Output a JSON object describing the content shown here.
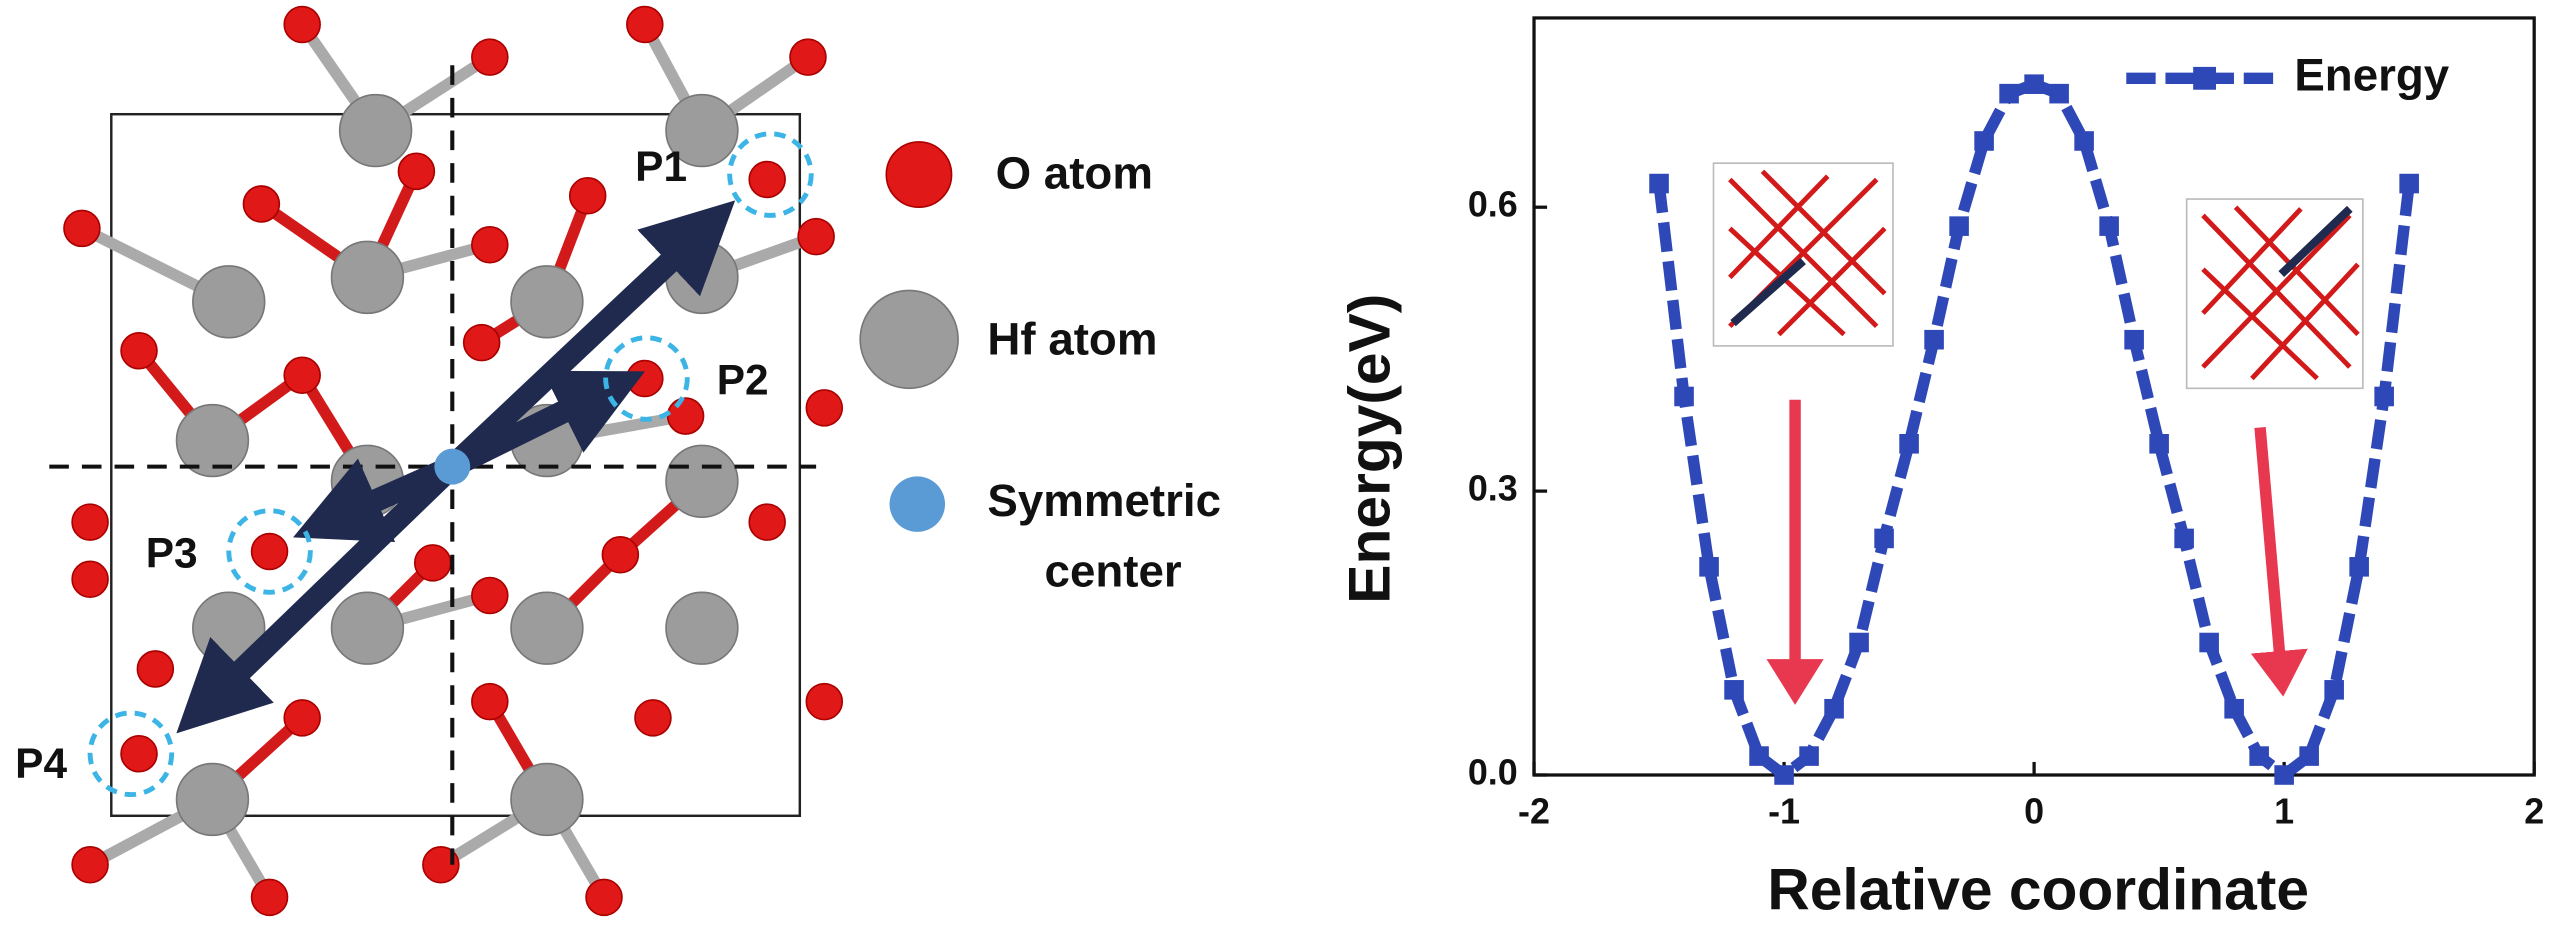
{
  "diagram": {
    "labels": [
      "P1",
      "P2",
      "P3",
      "P4"
    ],
    "legend": [
      "O atom",
      "Hf atom",
      [
        "Symmetric",
        "center"
      ]
    ]
  },
  "chart_data": {
    "type": "line",
    "xlabel": "Relative coordinate",
    "ylabel": "Energy(eV)",
    "x": [
      -1.5,
      -1.4,
      -1.3,
      -1.2,
      -1.1,
      -1.0,
      -0.9,
      -0.8,
      -0.7,
      -0.6,
      -0.5,
      -0.4,
      -0.3,
      -0.2,
      -0.1,
      0,
      0.1,
      0.2,
      0.3,
      0.4,
      0.5,
      0.6,
      0.7,
      0.8,
      0.9,
      1.0,
      1.1,
      1.2,
      1.3,
      1.4,
      1.5
    ],
    "series": [
      {
        "name": "Energy",
        "color": "#2f48b8",
        "values": [
          0.625,
          0.4,
          0.22,
          0.09,
          0.02,
          0,
          0.02,
          0.07,
          0.14,
          0.25,
          0.35,
          0.46,
          0.58,
          0.67,
          0.72,
          0.73,
          0.72,
          0.67,
          0.58,
          0.46,
          0.35,
          0.25,
          0.14,
          0.07,
          0.02,
          0,
          0.02,
          0.09,
          0.22,
          0.4,
          0.625
        ]
      }
    ],
    "xlim": [
      -2,
      2
    ],
    "ylim": [
      0,
      0.8
    ],
    "xticks": [
      -2,
      -1,
      0,
      1,
      2
    ],
    "yticks": [
      {
        "value": 0,
        "label": "0.0"
      },
      {
        "value": 0.3,
        "label": "0.3"
      },
      {
        "value": 0.6,
        "label": "0.6"
      }
    ],
    "legend": "upper right"
  }
}
